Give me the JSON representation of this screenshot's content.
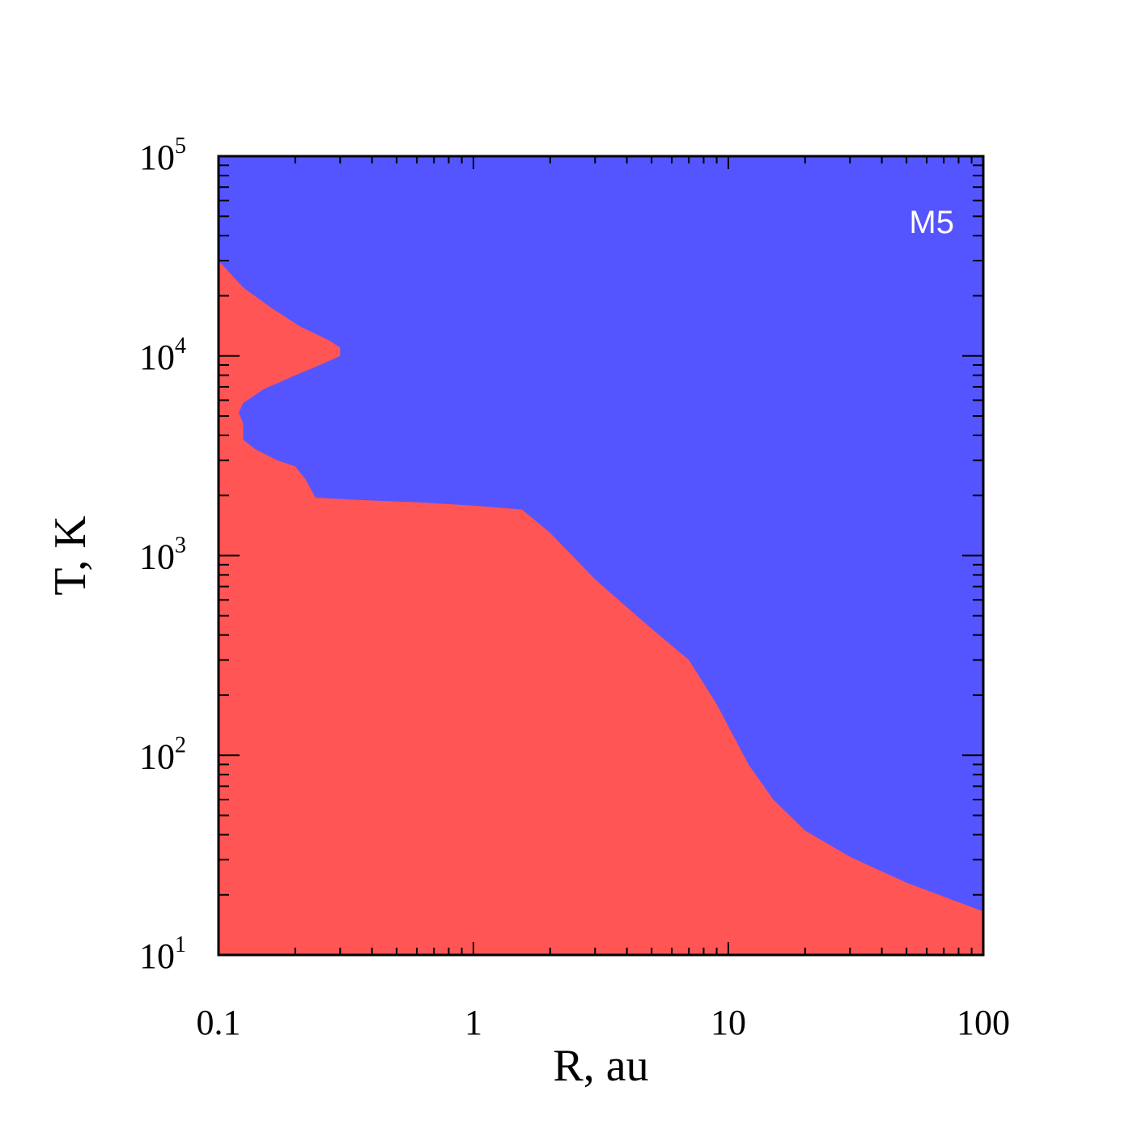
{
  "chart_data": {
    "type": "area",
    "xlabel": "R, au",
    "ylabel": "T, K",
    "xscale": "log",
    "yscale": "log",
    "xlim": [
      0.1,
      100
    ],
    "ylim": [
      10,
      100000
    ],
    "x_ticks": [
      {
        "value": 0.1,
        "label": "0.1"
      },
      {
        "value": 1,
        "label": "1"
      },
      {
        "value": 10,
        "label": "10"
      },
      {
        "value": 100,
        "label": "100"
      }
    ],
    "y_ticks": [
      {
        "value": 10,
        "base": "10",
        "exp": "1"
      },
      {
        "value": 100,
        "base": "10",
        "exp": "2"
      },
      {
        "value": 1000,
        "base": "10",
        "exp": "3"
      },
      {
        "value": 10000,
        "base": "10",
        "exp": "4"
      },
      {
        "value": 100000,
        "base": "10",
        "exp": "5"
      }
    ],
    "annotation": "M5",
    "colors": {
      "upper_region": "#5555ff",
      "lower_region": "#ff5555",
      "annotation": "#ffffff"
    },
    "boundary": [
      {
        "x": 0.1,
        "y": 30000
      },
      {
        "x": 0.125,
        "y": 22000
      },
      {
        "x": 0.16,
        "y": 17500
      },
      {
        "x": 0.21,
        "y": 14000
      },
      {
        "x": 0.27,
        "y": 12000
      },
      {
        "x": 0.3,
        "y": 11000
      },
      {
        "x": 0.3,
        "y": 10000
      },
      {
        "x": 0.25,
        "y": 9000
      },
      {
        "x": 0.2,
        "y": 8000
      },
      {
        "x": 0.15,
        "y": 6800
      },
      {
        "x": 0.125,
        "y": 5800
      },
      {
        "x": 0.12,
        "y": 5200
      },
      {
        "x": 0.125,
        "y": 4600
      },
      {
        "x": 0.125,
        "y": 3800
      },
      {
        "x": 0.14,
        "y": 3400
      },
      {
        "x": 0.17,
        "y": 3000
      },
      {
        "x": 0.2,
        "y": 2800
      },
      {
        "x": 0.22,
        "y": 2400
      },
      {
        "x": 0.24,
        "y": 1950
      },
      {
        "x": 0.35,
        "y": 1900
      },
      {
        "x": 0.6,
        "y": 1850
      },
      {
        "x": 1.0,
        "y": 1780
      },
      {
        "x": 1.55,
        "y": 1700
      },
      {
        "x": 2.0,
        "y": 1300
      },
      {
        "x": 3.0,
        "y": 760
      },
      {
        "x": 5.0,
        "y": 430
      },
      {
        "x": 7.0,
        "y": 300
      },
      {
        "x": 9.0,
        "y": 180
      },
      {
        "x": 12.0,
        "y": 90
      },
      {
        "x": 15.0,
        "y": 60
      },
      {
        "x": 20.0,
        "y": 42
      },
      {
        "x": 30.0,
        "y": 31
      },
      {
        "x": 50.0,
        "y": 23
      },
      {
        "x": 100.0,
        "y": 16.5
      }
    ]
  }
}
